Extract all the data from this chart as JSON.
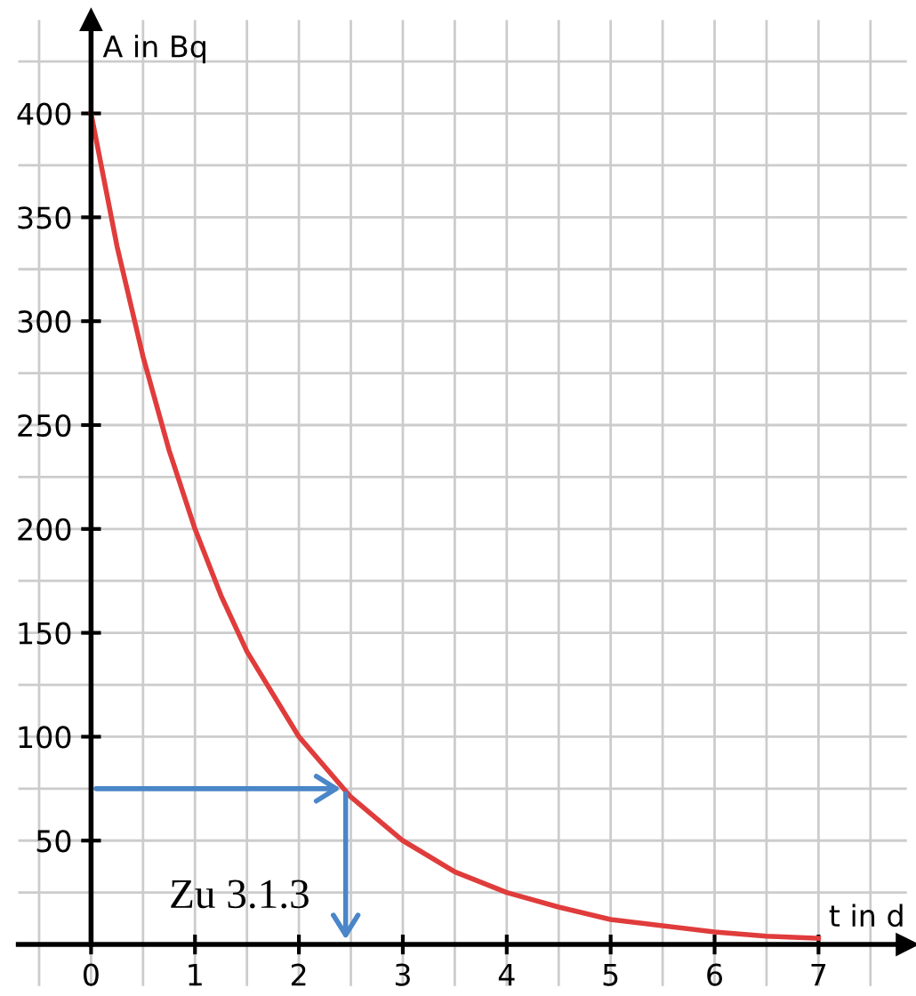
{
  "chart_data": {
    "type": "line",
    "xlabel": "t in d",
    "ylabel": "A in Bq",
    "x": [
      0,
      0.25,
      0.5,
      0.75,
      1,
      1.25,
      1.5,
      2,
      2.5,
      3,
      3.5,
      4,
      4.5,
      5,
      5.5,
      6,
      6.5,
      7
    ],
    "series": [
      {
        "color": "#e03c3c",
        "values": [
          400,
          336,
          283,
          238,
          200,
          168,
          141,
          100,
          71,
          50,
          35,
          25,
          18,
          12,
          9,
          6,
          4,
          3
        ]
      }
    ],
    "xlim": [
      -0.7,
      7.85
    ],
    "ylim": [
      -20,
      445
    ],
    "xticks": [
      {
        "value": 0,
        "label": "0"
      },
      1,
      2,
      3,
      4,
      5,
      6,
      7
    ],
    "yticks": [
      50,
      100,
      150,
      200,
      250,
      300,
      350,
      400
    ],
    "grid": true,
    "marker": "none",
    "line_style": "solid",
    "legend": false,
    "annotations": [
      {
        "text": "Zu 3.1.3",
        "x": 2.45,
        "y": 75
      }
    ]
  }
}
